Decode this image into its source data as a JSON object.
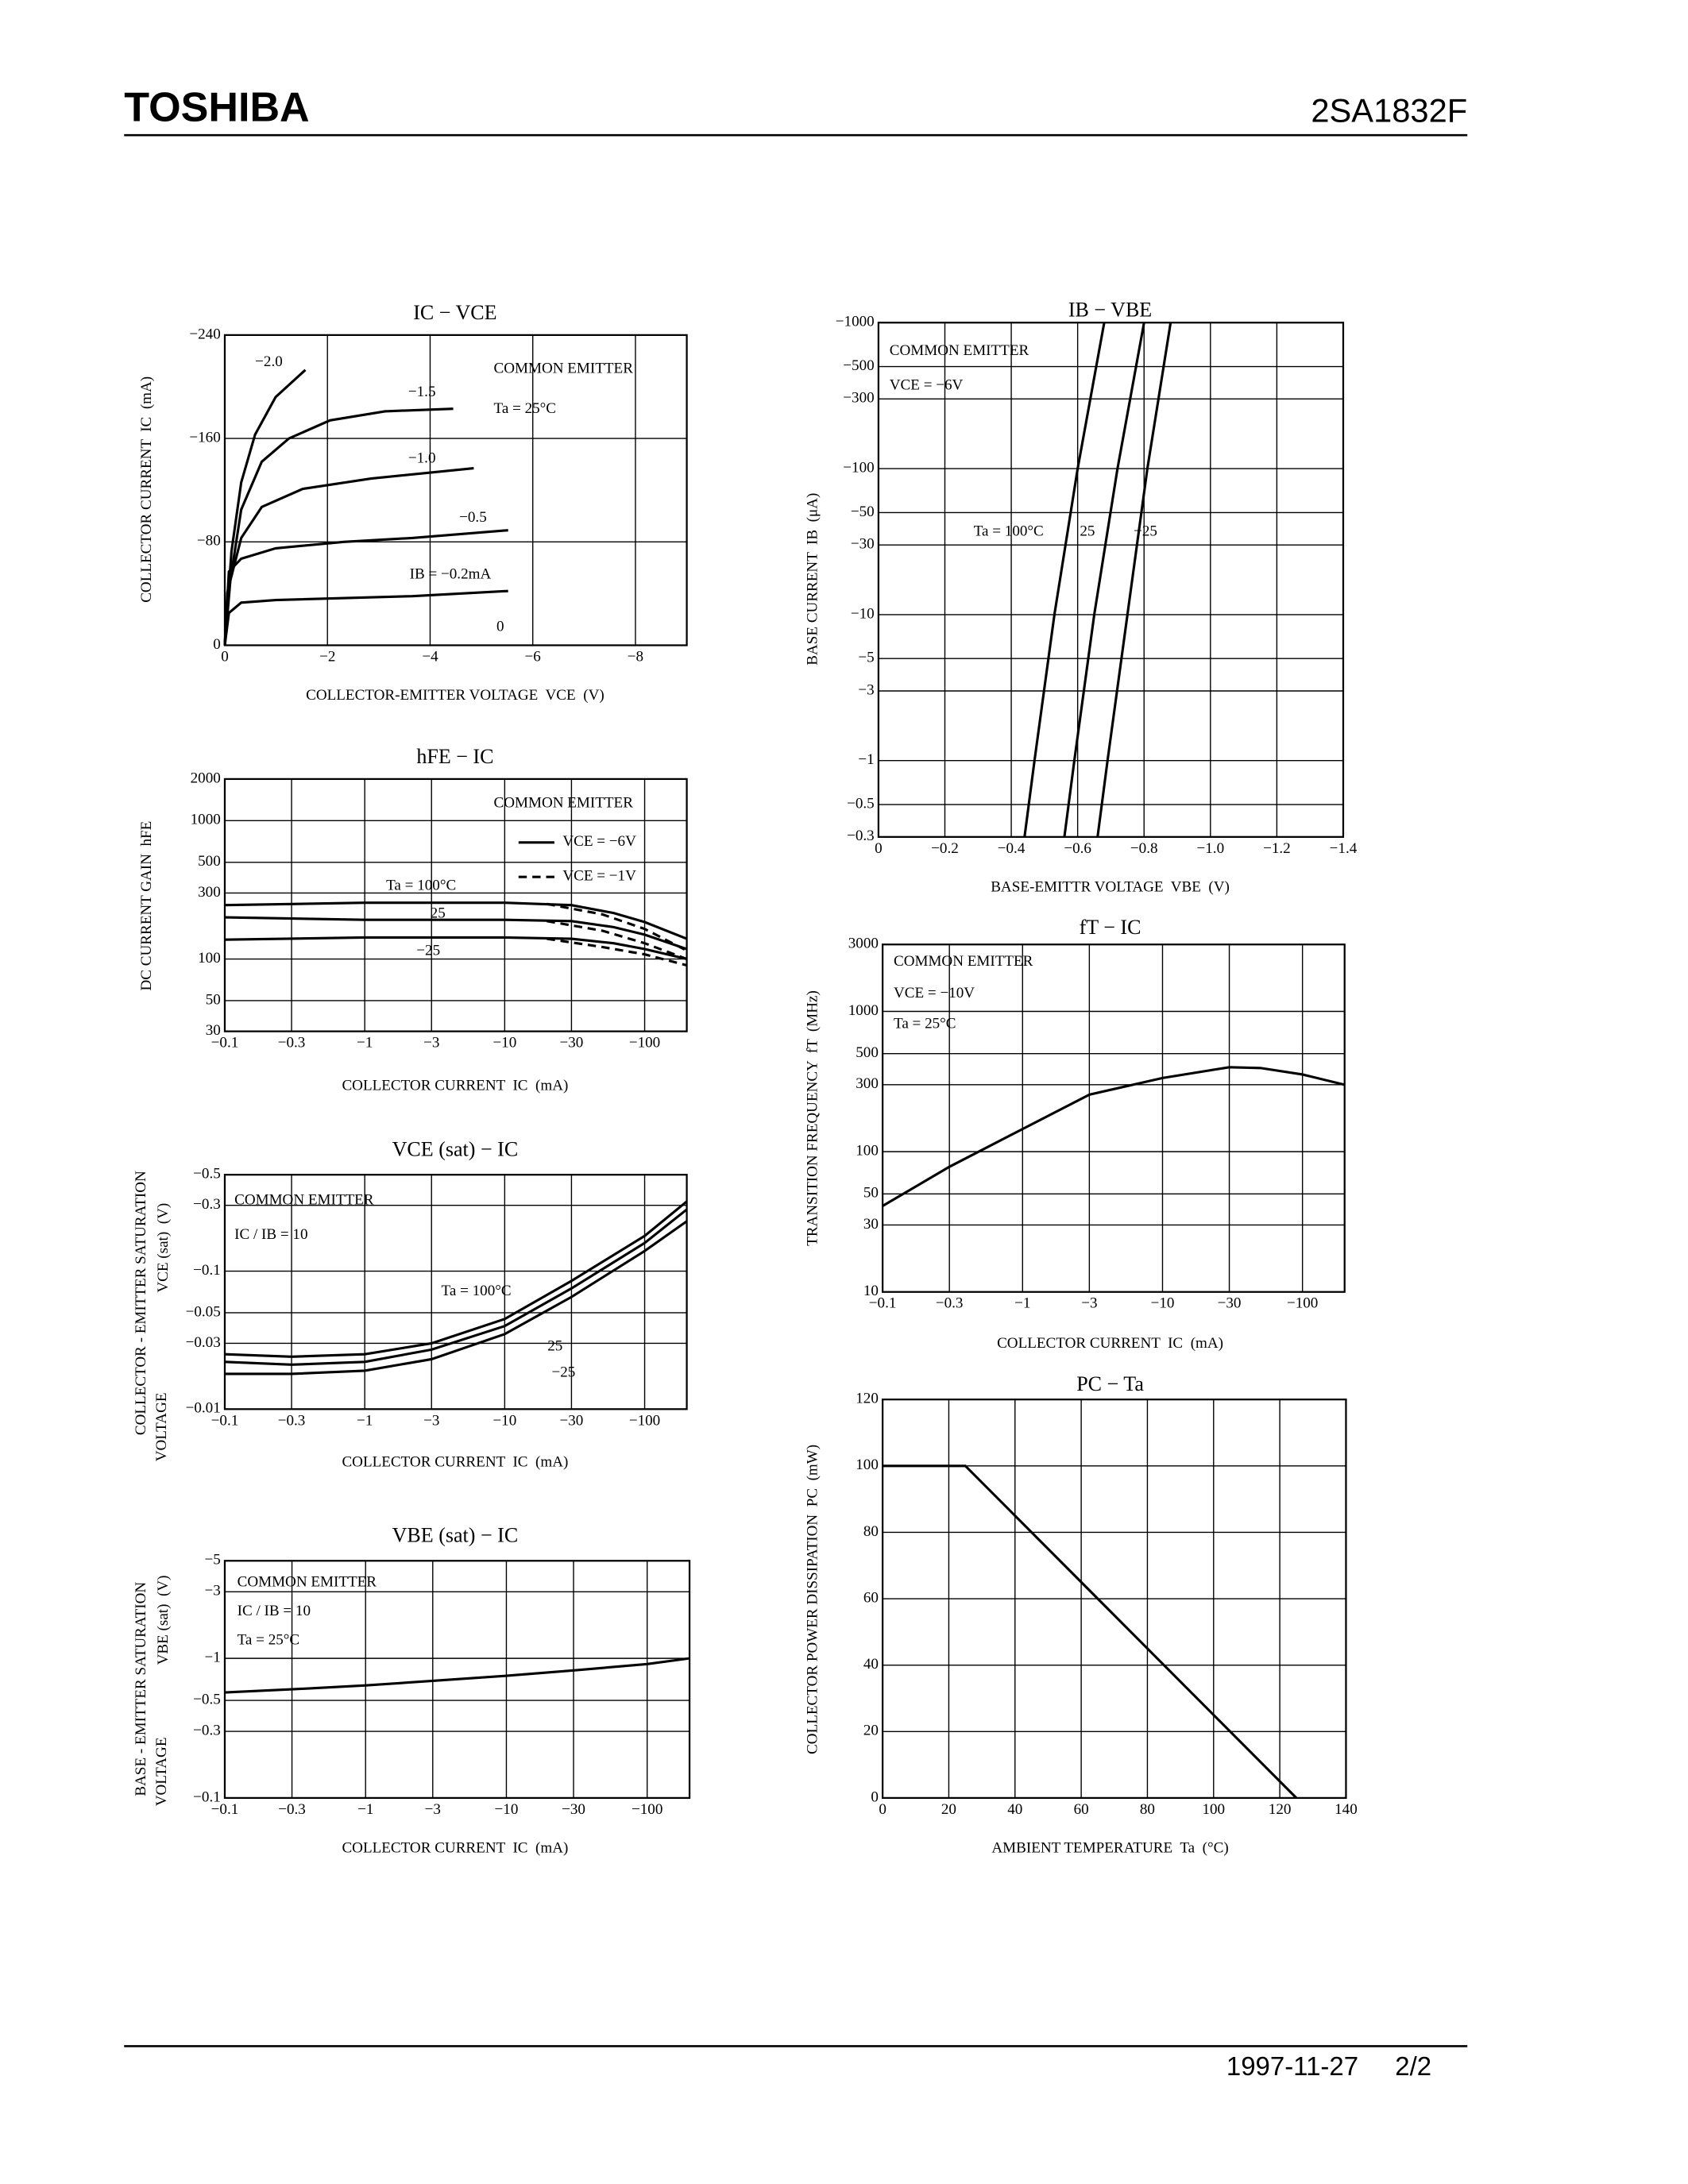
{
  "header": {
    "brand": "TOSHIBA",
    "part": "2SA1832F"
  },
  "footer": {
    "date": "1997-11-27",
    "page": "2/2"
  },
  "chart_data": [
    {
      "type": "line",
      "title": "IC − VCE",
      "xlabel": "COLLECTOR-EMITTER VOLTAGE  VCE  (V)",
      "ylabel": [
        "COLLECTOR CURRENT  IC  (mA)"
      ],
      "xlim": [
        0,
        -9
      ],
      "ylim": [
        0,
        -240
      ],
      "grid": true,
      "xticks": [
        0,
        {
          "value": -2,
          "label": "−2"
        },
        {
          "value": -4,
          "label": "−4"
        },
        {
          "value": -6,
          "label": "−6"
        },
        {
          "value": -8,
          "label": "−8"
        }
      ],
      "yticks": [
        0,
        {
          "value": -80,
          "label": "−80"
        },
        {
          "value": -160,
          "label": "−160"
        },
        {
          "value": -240,
          "label": "−240"
        }
      ],
      "annotations": [
        "COMMON EMITTER",
        "Ta = 25°C",
        "−2.0",
        "−1.5",
        "−1.0",
        "−0.5",
        "IB = −0.2mA",
        "0"
      ],
      "series": [
        {
          "x": [
            0,
            -0.13,
            -0.32,
            -0.59,
            -0.99,
            -1.57
          ],
          "values": [
            0,
            -72.5,
            -126,
            -163,
            -192,
            -213
          ]
        },
        {
          "x": [
            0,
            -0.11,
            -0.32,
            -0.72,
            -1.25,
            -2.05,
            -3.12,
            -4.45
          ],
          "values": [
            0,
            -51,
            -105,
            -142,
            -160,
            -174,
            -181,
            -183
          ]
        },
        {
          "x": [
            0,
            -0.05,
            -0.32,
            -0.72,
            -1.52,
            -2.85,
            -4.85
          ],
          "values": [
            0,
            -41,
            -83,
            -107,
            -121,
            -129,
            -137
          ]
        },
        {
          "x": [
            0,
            -0.08,
            -0.32,
            -0.99,
            -2.32,
            -3.65,
            -5.52
          ],
          "values": [
            0,
            -57,
            -67,
            -75,
            -80,
            -83,
            -89
          ]
        },
        {
          "x": [
            0,
            -0.08,
            -0.32,
            -0.99,
            -3.65,
            -5.52
          ],
          "values": [
            0,
            -25,
            -33,
            -35,
            -38,
            -42
          ]
        }
      ]
    },
    {
      "type": "line",
      "title": "hFE − IC",
      "xlabel": "COLLECTOR CURRENT  IC  (mA)",
      "ylabel": [
        "DC CURRENT GAIN  hFE"
      ],
      "xscale": "log",
      "yscale": "log",
      "xlim": [
        -0.1,
        -200
      ],
      "ylim": [
        30,
        2000
      ],
      "grid": true,
      "xticks": [
        {
          "value": -0.1,
          "label": "−0.1"
        },
        {
          "value": -0.3,
          "label": "−0.3"
        },
        {
          "value": -1,
          "label": "−1"
        },
        {
          "value": -3,
          "label": "−3"
        },
        {
          "value": -10,
          "label": "−10"
        },
        {
          "value": -30,
          "label": "−30"
        },
        {
          "value": -100,
          "label": "−100"
        }
      ],
      "yticks": [
        30,
        50,
        100,
        300,
        500,
        1000,
        2000
      ],
      "annotations": [
        "COMMON EMITTER",
        "Ta = 100°C",
        "25",
        "−25"
      ],
      "legend": [
        {
          "label": "VCE = −6V",
          "dash": false
        },
        {
          "label": "VCE = −1V",
          "dash": true
        }
      ],
      "series": [
        {
          "dash": false,
          "x": [
            -0.1,
            -1,
            -10,
            -30,
            -60,
            -100,
            -200
          ],
          "values": [
            245,
            255,
            255,
            245,
            215,
            185,
            140
          ]
        },
        {
          "dash": false,
          "x": [
            -0.1,
            -1,
            -10,
            -30,
            -60,
            -100,
            -200
          ],
          "values": [
            200,
            192,
            192,
            188,
            170,
            150,
            118
          ]
        },
        {
          "dash": false,
          "x": [
            -0.1,
            -1,
            -10,
            -30,
            -60,
            -100,
            -200
          ],
          "values": [
            138,
            143,
            143,
            140,
            130,
            118,
            100
          ]
        },
        {
          "dash": true,
          "x": [
            -20,
            -50,
            -100,
            -200
          ],
          "values": [
            250,
            210,
            165,
            115
          ]
        },
        {
          "dash": true,
          "x": [
            -20,
            -50,
            -100,
            -200
          ],
          "values": [
            188,
            160,
            130,
            100
          ]
        },
        {
          "dash": true,
          "x": [
            -20,
            -50,
            -100,
            -200
          ],
          "values": [
            140,
            122,
            108,
            90
          ]
        }
      ]
    },
    {
      "type": "line",
      "title": "VCE (sat) − IC",
      "xlabel": "COLLECTOR CURRENT  IC  (mA)",
      "ylabel": [
        "COLLECTOR - EMITTER SATURATION",
        "VOLTAGE",
        "VCE (sat)  (V)"
      ],
      "xscale": "log",
      "yscale": "log",
      "xlim": [
        -0.1,
        -200
      ],
      "ylim": [
        -0.01,
        -0.5
      ],
      "grid": true,
      "xticks": [
        {
          "value": -0.1,
          "label": "−0.1"
        },
        {
          "value": -0.3,
          "label": "−0.3"
        },
        {
          "value": -1,
          "label": "−1"
        },
        {
          "value": -3,
          "label": "−3"
        },
        {
          "value": -10,
          "label": "−10"
        },
        {
          "value": -30,
          "label": "−30"
        },
        {
          "value": -100,
          "label": "−100"
        }
      ],
      "yticks": [
        {
          "value": -0.01,
          "label": "−0.01"
        },
        {
          "value": -0.03,
          "label": "−0.03"
        },
        {
          "value": -0.05,
          "label": "−0.05"
        },
        {
          "value": -0.1,
          "label": "−0.1"
        },
        {
          "value": -0.3,
          "label": "−0.3"
        },
        {
          "value": -0.5,
          "label": "−0.5"
        }
      ],
      "annotations": [
        "COMMON EMITTER",
        "IC / IB = 10",
        "Ta = 100°C",
        "25",
        "−25"
      ],
      "series": [
        {
          "x": [
            -0.1,
            -0.3,
            -1,
            -3,
            -10,
            -30,
            -100,
            -200
          ],
          "values": [
            -0.025,
            -0.024,
            -0.025,
            -0.03,
            -0.045,
            -0.085,
            -0.18,
            -0.32
          ]
        },
        {
          "x": [
            -0.1,
            -0.3,
            -1,
            -3,
            -10,
            -30,
            -100,
            -200
          ],
          "values": [
            -0.022,
            -0.021,
            -0.022,
            -0.027,
            -0.04,
            -0.075,
            -0.16,
            -0.28
          ]
        },
        {
          "x": [
            -0.1,
            -0.3,
            -1,
            -3,
            -10,
            -30,
            -100,
            -200
          ],
          "values": [
            -0.018,
            -0.018,
            -0.019,
            -0.023,
            -0.035,
            -0.065,
            -0.14,
            -0.23
          ]
        }
      ]
    },
    {
      "type": "line",
      "title": "VBE (sat) − IC",
      "xlabel": "COLLECTOR CURRENT  IC  (mA)",
      "ylabel": [
        "BASE - EMITTER SATURATION",
        "VOLTAGE",
        "VBE (sat)  (V)"
      ],
      "xscale": "log",
      "yscale": "log",
      "xlim": [
        -0.1,
        -200
      ],
      "ylim": [
        -0.1,
        -5
      ],
      "grid": true,
      "xticks": [
        {
          "value": -0.1,
          "label": "−0.1"
        },
        {
          "value": -0.3,
          "label": "−0.3"
        },
        {
          "value": -1,
          "label": "−1"
        },
        {
          "value": -3,
          "label": "−3"
        },
        {
          "value": -10,
          "label": "−10"
        },
        {
          "value": -30,
          "label": "−30"
        },
        {
          "value": -100,
          "label": "−100"
        }
      ],
      "yticks": [
        {
          "value": -0.1,
          "label": "−0.1"
        },
        {
          "value": -0.3,
          "label": "−0.3"
        },
        {
          "value": -0.5,
          "label": "−0.5"
        },
        {
          "value": -1,
          "label": "−1"
        },
        {
          "value": -3,
          "label": "−3"
        },
        {
          "value": -5,
          "label": "−5"
        }
      ],
      "annotations": [
        "COMMON EMITTER",
        "IC / IB = 10",
        "Ta = 25°C"
      ],
      "series": [
        {
          "x": [
            -0.1,
            -0.3,
            -1,
            -3,
            -10,
            -30,
            -100,
            -200
          ],
          "values": [
            -0.57,
            -0.6,
            -0.64,
            -0.69,
            -0.75,
            -0.82,
            -0.91,
            -1.0
          ]
        }
      ]
    },
    {
      "type": "line",
      "title": "IB − VBE",
      "xlabel": "BASE-EMITTR VOLTAGE  VBE  (V)",
      "ylabel": [
        "BASE CURRENT  IB  (μA)"
      ],
      "yscale": "log",
      "xlim": [
        0,
        -1.4
      ],
      "ylim": [
        -0.3,
        -1000
      ],
      "grid": true,
      "xticks": [
        0,
        {
          "value": -0.2,
          "label": "−0.2"
        },
        {
          "value": -0.4,
          "label": "−0.4"
        },
        {
          "value": -0.6,
          "label": "−0.6"
        },
        {
          "value": -0.8,
          "label": "−0.8"
        },
        {
          "value": -1.0,
          "label": "−1.0"
        },
        {
          "value": -1.2,
          "label": "−1.2"
        },
        {
          "value": -1.4,
          "label": "−1.4"
        }
      ],
      "yticks": [
        {
          "value": -0.3,
          "label": "−0.3"
        },
        {
          "value": -0.5,
          "label": "−0.5"
        },
        {
          "value": -1,
          "label": "−1"
        },
        {
          "value": -3,
          "label": "−3"
        },
        {
          "value": -5,
          "label": "−5"
        },
        {
          "value": -10,
          "label": "−10"
        },
        {
          "value": -30,
          "label": "−30"
        },
        {
          "value": -50,
          "label": "−50"
        },
        {
          "value": -100,
          "label": "−100"
        },
        {
          "value": -300,
          "label": "−300"
        },
        {
          "value": -500,
          "label": "−500"
        },
        {
          "value": -1000,
          "label": "−1000"
        }
      ],
      "annotations": [
        "COMMON EMITTER",
        "VCE = −6V",
        "Ta = 100°C",
        "25",
        "−25"
      ],
      "series": [
        {
          "x": [
            -0.44,
            -0.47,
            -0.53,
            -0.6,
            -0.68
          ],
          "values": [
            -0.3,
            -1,
            -10,
            -100,
            -1000
          ]
        },
        {
          "x": [
            -0.56,
            -0.59,
            -0.65,
            -0.72,
            -0.8
          ],
          "values": [
            -0.3,
            -1,
            -10,
            -100,
            -1000
          ]
        },
        {
          "x": [
            -0.66,
            -0.69,
            -0.75,
            -0.81,
            -0.88
          ],
          "values": [
            -0.3,
            -1,
            -10,
            -100,
            -1000
          ]
        }
      ]
    },
    {
      "type": "line",
      "title": "fT − IC",
      "xlabel": "COLLECTOR CURRENT  IC  (mA)",
      "ylabel": [
        "TRANSITION FREQUENCY  fT  (MHz)"
      ],
      "xscale": "log",
      "yscale": "log",
      "xlim": [
        -0.1,
        -200
      ],
      "ylim": [
        10,
        3000
      ],
      "grid": true,
      "xticks": [
        {
          "value": -0.1,
          "label": "−0.1"
        },
        {
          "value": -0.3,
          "label": "−0.3"
        },
        {
          "value": -1,
          "label": "−1"
        },
        {
          "value": -3,
          "label": "−3"
        },
        {
          "value": -10,
          "label": "−10"
        },
        {
          "value": -30,
          "label": "−30"
        },
        {
          "value": -100,
          "label": "−100"
        }
      ],
      "yticks": [
        10,
        30,
        50,
        100,
        300,
        500,
        1000,
        3000
      ],
      "annotations": [
        "COMMON EMITTER",
        "VCE = −10V",
        "Ta = 25°C"
      ],
      "series": [
        {
          "x": [
            -0.1,
            -0.3,
            -1,
            -3,
            -10,
            -30,
            -50,
            -100,
            -200
          ],
          "values": [
            41,
            78,
            145,
            255,
            335,
            400,
            395,
            355,
            300
          ]
        }
      ]
    },
    {
      "type": "line",
      "title": "PC − Ta",
      "xlabel": "AMBIENT TEMPERATURE  Ta  (°C)",
      "ylabel": [
        "COLLECTOR POWER DISSIPATION  PC  (mW)"
      ],
      "xlim": [
        0,
        140
      ],
      "ylim": [
        0,
        120
      ],
      "grid": true,
      "xticks": [
        0,
        20,
        40,
        60,
        80,
        100,
        120,
        140
      ],
      "yticks": [
        0,
        20,
        40,
        60,
        80,
        100,
        120
      ],
      "annotations": [],
      "series": [
        {
          "x": [
            0,
            25,
            125
          ],
          "values": [
            100,
            100,
            0
          ]
        }
      ]
    }
  ]
}
